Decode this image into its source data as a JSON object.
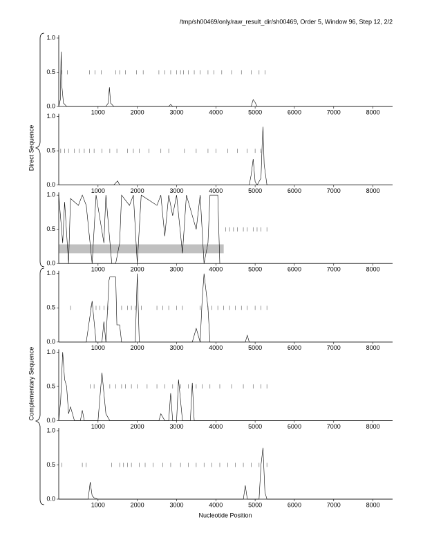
{
  "page_title": "/tmp/sh00469/only/raw_result_dir/sh00469, Order 5, Window 96, Step 12, 2/2",
  "group_labels": [
    "Direct Sequence",
    "Complementary Sequence"
  ],
  "x_label": "Nucleotide Position",
  "chart_data": [
    {
      "type": "line",
      "xlim": [
        0,
        8500
      ],
      "ylim": [
        0,
        1
      ],
      "xticks": [
        1000,
        2000,
        3000,
        4000,
        5000,
        6000,
        7000,
        8000
      ],
      "yticks": [
        {
          "value": 0,
          "label": "0.0"
        },
        0.5,
        {
          "value": 1,
          "label": "1.0"
        }
      ],
      "x": [
        0,
        40,
        60,
        80,
        120,
        200,
        1200,
        1260,
        1290,
        1320,
        1400,
        2800,
        2850,
        2900,
        4900,
        4950,
        5000,
        5050,
        5200,
        8500
      ],
      "values": [
        0,
        0.1,
        0.8,
        0.3,
        0.05,
        0,
        0,
        0.05,
        0.28,
        0.05,
        0,
        0,
        0.03,
        0,
        0,
        0.1,
        0.06,
        0,
        0,
        0
      ],
      "marker_x": [
        80,
        220,
        780,
        920,
        1080,
        1450,
        1550,
        1700,
        1980,
        2150,
        2550,
        2700,
        2850,
        3000,
        3100,
        3180,
        3300,
        3450,
        3600,
        3800,
        3950,
        4150,
        4400,
        4650,
        4900,
        5100,
        5250
      ],
      "marker_y": 0.5
    },
    {
      "type": "line",
      "xlim": [
        0,
        8500
      ],
      "ylim": [
        0,
        1
      ],
      "xticks": [
        1000,
        2000,
        3000,
        4000,
        5000,
        6000,
        7000,
        8000
      ],
      "yticks": [
        {
          "value": 0,
          "label": "0.0"
        },
        0.5,
        {
          "value": 1,
          "label": "1.0"
        }
      ],
      "x": [
        0,
        100,
        1400,
        1500,
        1550,
        1700,
        4850,
        4900,
        4950,
        5000,
        5050,
        5150,
        5180,
        5200,
        5230,
        5300,
        8500
      ],
      "values": [
        0,
        0,
        0,
        0.06,
        0,
        0,
        0,
        0.15,
        0.38,
        0.05,
        0,
        0.1,
        0.6,
        0.85,
        0.3,
        0,
        0
      ],
      "marker_x": [
        50,
        150,
        250,
        400,
        520,
        650,
        780,
        900,
        1100,
        1300,
        1480,
        1750,
        1900,
        2050,
        2300,
        2600,
        2800,
        3200,
        3500,
        3800,
        4000,
        4300,
        4550,
        4800,
        5000,
        5150
      ],
      "marker_y": 0.5
    },
    {
      "type": "line",
      "xlim": [
        0,
        8500
      ],
      "ylim": [
        0,
        1
      ],
      "xticks": [
        1000,
        2000,
        3000,
        4000,
        5000,
        6000,
        7000,
        8000
      ],
      "yticks": [
        {
          "value": 0,
          "label": "0.0"
        },
        0.5,
        {
          "value": 1,
          "label": "1.0"
        }
      ],
      "x": [
        0,
        100,
        150,
        250,
        300,
        500,
        600,
        700,
        850,
        950,
        1150,
        1200,
        1350,
        1450,
        1550,
        1600,
        1800,
        1900,
        2000,
        2100,
        2500,
        2600,
        2700,
        2800,
        2900,
        3000,
        3150,
        3250,
        3500,
        3600,
        3700,
        3800,
        3850,
        4050,
        4100,
        4200,
        8500
      ],
      "values": [
        1,
        0.3,
        0.9,
        0,
        0.95,
        0.85,
        1,
        0.85,
        0,
        1,
        0.3,
        1,
        0,
        0,
        0.3,
        1,
        0.85,
        1,
        0,
        1,
        0.85,
        1,
        0.4,
        1,
        0.7,
        1,
        0.15,
        1,
        0.5,
        1,
        0,
        0.3,
        1,
        1,
        0,
        0,
        0
      ],
      "marker_x": [
        4250,
        4350,
        4450,
        4550,
        4700,
        4800,
        4950,
        5050,
        5150,
        5300
      ],
      "marker_y": 0.5,
      "highlight": {
        "x": [
          0,
          4200
        ],
        "y": [
          0.15,
          0.28
        ]
      }
    },
    {
      "type": "line",
      "xlim": [
        0,
        8500
      ],
      "ylim": [
        0,
        1
      ],
      "xticks": [
        1000,
        2000,
        3000,
        4000,
        5000,
        6000,
        7000,
        8000
      ],
      "yticks": [
        {
          "value": 0,
          "label": "0.0"
        },
        0.5,
        {
          "value": 1,
          "label": "1.0"
        }
      ],
      "x": [
        0,
        700,
        850,
        950,
        1100,
        1150,
        1200,
        1280,
        1300,
        1450,
        1480,
        1550,
        1600,
        1950,
        2000,
        2050,
        3400,
        3500,
        3600,
        3650,
        3700,
        3800,
        3850,
        4750,
        4800,
        4850,
        8500
      ],
      "values": [
        0,
        0,
        0.6,
        0,
        0,
        0.3,
        0,
        0.9,
        0.95,
        0.95,
        0.25,
        0.25,
        0,
        0,
        1,
        0,
        0,
        0.2,
        0,
        0.6,
        1,
        0.5,
        0,
        0,
        0.1,
        0,
        0
      ],
      "marker_x": [
        300,
        820,
        950,
        1050,
        1150,
        1250,
        1600,
        1750,
        1850,
        1950,
        2100,
        2500,
        2650,
        2800,
        3000,
        3150,
        3600,
        3800,
        3900,
        4050,
        4200,
        4350,
        4500,
        4650,
        4800,
        5000,
        5150,
        5300
      ],
      "marker_y": 0.5
    },
    {
      "type": "line",
      "xlim": [
        0,
        8500
      ],
      "ylim": [
        0,
        1
      ],
      "xticks": [
        1000,
        2000,
        3000,
        4000,
        5000,
        6000,
        7000,
        8000
      ],
      "yticks": [
        {
          "value": 0,
          "label": "0.0"
        },
        0.5,
        {
          "value": 1,
          "label": "1.0"
        }
      ],
      "x": [
        0,
        50,
        100,
        150,
        200,
        250,
        300,
        400,
        550,
        600,
        650,
        1000,
        1100,
        1200,
        1300,
        2550,
        2600,
        2700,
        2800,
        2850,
        2900,
        3000,
        3050,
        3150,
        3350,
        3400,
        3450,
        3600,
        8500
      ],
      "values": [
        0,
        0.3,
        1,
        0.6,
        0.5,
        0.1,
        0.2,
        0,
        0,
        0.15,
        0,
        0,
        0.7,
        0.1,
        0,
        0,
        0.1,
        0,
        0,
        0.4,
        0,
        0,
        0.6,
        0,
        0,
        0.55,
        0,
        0,
        0
      ],
      "marker_x": [
        800,
        900,
        1300,
        1450,
        1600,
        1700,
        1850,
        2000,
        2250,
        2500,
        2700,
        2900,
        3100,
        3300,
        3500,
        3650,
        3850,
        4100,
        4400,
        4700,
        4950,
        5150,
        5300
      ],
      "marker_y": 0.5
    },
    {
      "type": "line",
      "xlim": [
        0,
        8500
      ],
      "ylim": [
        0,
        1
      ],
      "xticks": [
        1000,
        2000,
        3000,
        4000,
        5000,
        6000,
        7000,
        8000
      ],
      "yticks": [
        {
          "value": 0,
          "label": "0.0"
        },
        0.5,
        {
          "value": 1,
          "label": "1.0"
        }
      ],
      "x": [
        0,
        750,
        800,
        850,
        900,
        1000,
        4700,
        4750,
        4800,
        5100,
        5150,
        5200,
        5250,
        5300,
        8500
      ],
      "values": [
        0,
        0,
        0.25,
        0.05,
        0.02,
        0,
        0,
        0.2,
        0,
        0,
        0.5,
        0.75,
        0.1,
        0,
        0
      ],
      "marker_x": [
        80,
        600,
        700,
        1350,
        1550,
        1650,
        1750,
        1850,
        2050,
        2200,
        2400,
        2650,
        2850,
        3100,
        3300,
        3500,
        3700,
        3900,
        4100,
        4300,
        4500,
        4700,
        4900,
        5100,
        5300
      ],
      "marker_y": 0.5
    }
  ]
}
